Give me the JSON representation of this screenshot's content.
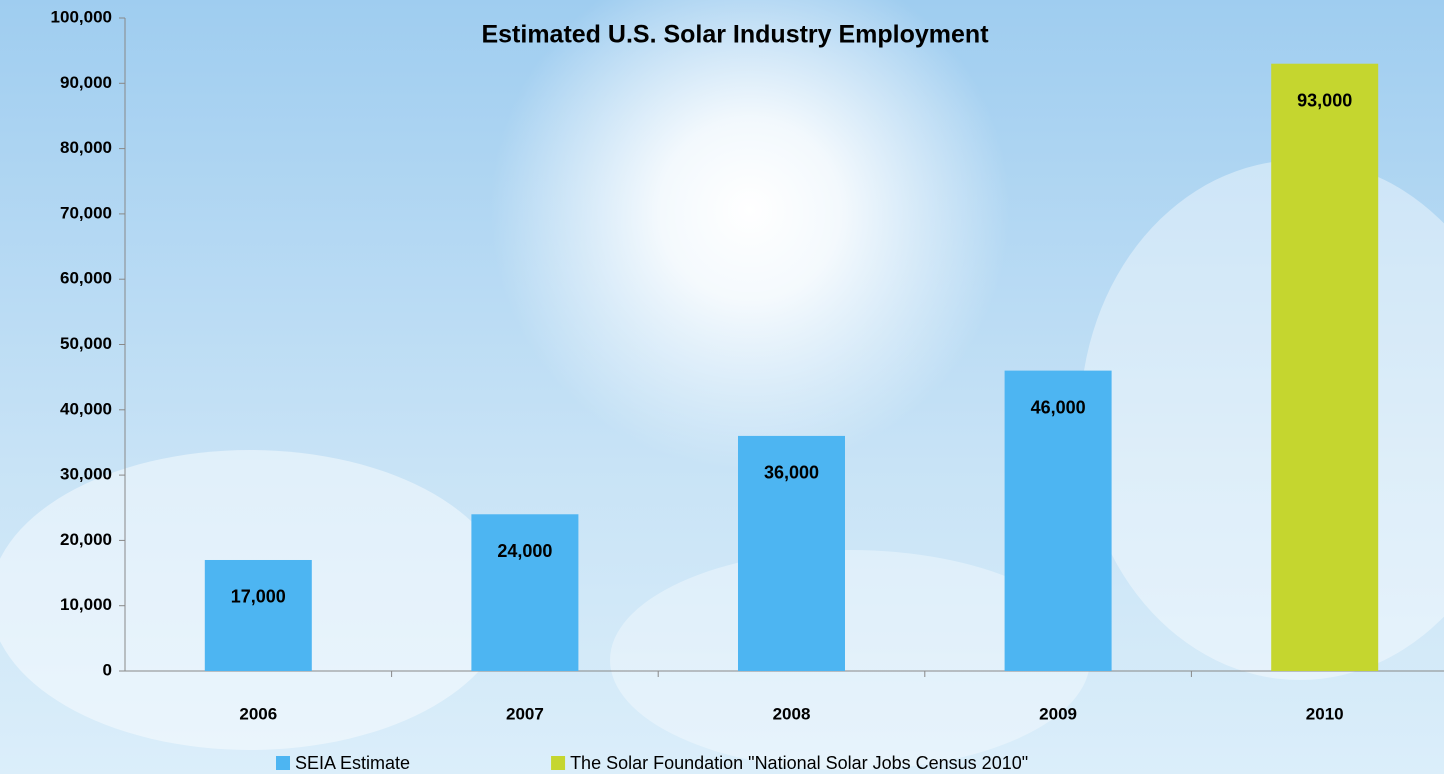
{
  "chart_data": {
    "type": "bar",
    "title": "Estimated U.S. Solar Industry Employment",
    "categories": [
      "2006",
      "2007",
      "2008",
      "2009",
      "2010"
    ],
    "series": [
      {
        "name": "SEIA Estimate",
        "color": "#4db5f2",
        "values": [
          17000,
          24000,
          36000,
          46000,
          null
        ],
        "value_labels": [
          "17,000",
          "24,000",
          "36,000",
          "46,000",
          null
        ]
      },
      {
        "name": "The Solar Foundation \"National Solar Jobs Census 2010\"",
        "color": "#c5d62f",
        "values": [
          null,
          null,
          null,
          null,
          93000
        ],
        "value_labels": [
          null,
          null,
          null,
          null,
          "93,000"
        ]
      }
    ],
    "ylim": [
      0,
      100000
    ],
    "yticks": [
      0,
      {
        "value": 10000,
        "label": "10,000"
      },
      {
        "value": 20000,
        "label": "20,000"
      },
      {
        "value": 30000,
        "label": "30,000"
      },
      {
        "value": 40000,
        "label": "40,000"
      },
      {
        "value": 50000,
        "label": "50,000"
      },
      {
        "value": 60000,
        "label": "60,000"
      },
      {
        "value": 70000,
        "label": "70,000"
      },
      {
        "value": 80000,
        "label": "80,000"
      },
      {
        "value": 90000,
        "label": "90,000"
      },
      {
        "value": 100000,
        "label": "100,000"
      }
    ],
    "legend": "bottom",
    "grid": false
  }
}
